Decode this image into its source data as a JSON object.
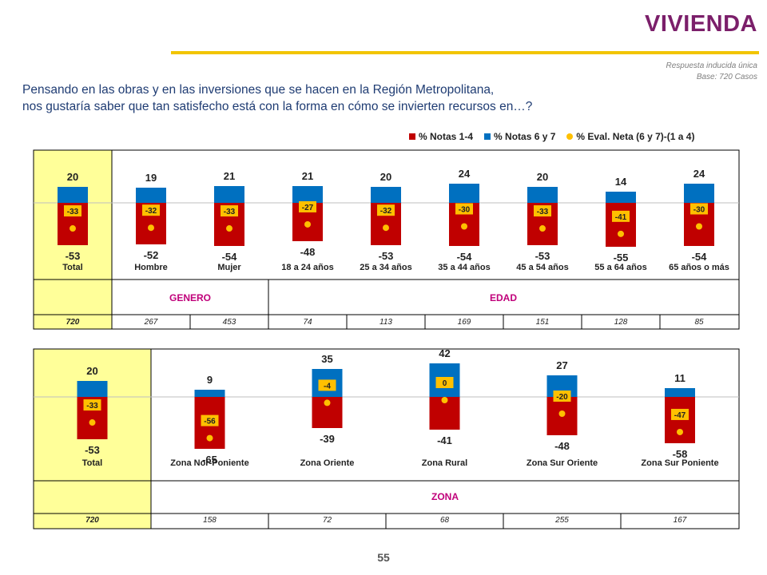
{
  "title": "VIVIENDA",
  "note_lines": [
    "Respuesta inducida única",
    "Base: 720 Casos"
  ],
  "question_lines": [
    "Pensando en las obras y en las inversiones que se hacen en la Región Metropolitana,",
    "nos gustaría saber que tan satisfecho está con la forma en cómo se invierten recursos en…?"
  ],
  "legend": [
    {
      "label": "% Notas 1-4",
      "color": "#C00000",
      "shape": "square"
    },
    {
      "label": "% Notas 6 y 7",
      "color": "#0070C0",
      "shape": "square"
    },
    {
      "label": "% Eval. Neta (6 y 7)-(1 a 4)",
      "color": "#FFC000",
      "shape": "circle"
    }
  ],
  "colors": {
    "negative": "#C00000",
    "positive": "#0070C0",
    "net": "#FFC000",
    "highlight": "#FFFF99"
  },
  "chart_data": [
    {
      "type": "bar",
      "categories": [
        "Total",
        "Hombre",
        "Mujer",
        "18 a 24 años",
        "25 a 34 años",
        "35 a 44 años",
        "45 a 54 años",
        "55 a 64 años",
        "65 años o más"
      ],
      "series": [
        {
          "name": "% Notas 1-4",
          "values": [
            -53,
            -52,
            -54,
            -48,
            -53,
            -54,
            -53,
            -55,
            -54
          ]
        },
        {
          "name": "% Notas 6 y 7",
          "values": [
            20,
            19,
            21,
            21,
            20,
            24,
            20,
            14,
            24
          ]
        },
        {
          "name": "% Eval. Neta (6 y 7)-(1 a 4)",
          "values": [
            -33,
            -32,
            -33,
            -27,
            -32,
            -30,
            -33,
            -41,
            -30
          ]
        }
      ],
      "groups": [
        {
          "label": "GENERO",
          "categories": [
            "Hombre",
            "Mujer"
          ]
        },
        {
          "label": "EDAD",
          "categories": [
            "18 a 24 años",
            "25 a 34 años",
            "35 a 44 años",
            "45 a 54 años",
            "55 a 64 años",
            "65 años o más"
          ]
        }
      ],
      "bases": [
        "720",
        "267",
        "453",
        "74",
        "113",
        "169",
        "151",
        "128",
        "85"
      ]
    },
    {
      "type": "bar",
      "categories": [
        "Total",
        "Zona Nor-Poniente",
        "Zona Oriente",
        "Zona Rural",
        "Zona Sur Oriente",
        "Zona Sur Poniente"
      ],
      "series": [
        {
          "name": "% Notas 1-4",
          "values": [
            -53,
            -65,
            -39,
            -41,
            -48,
            -58
          ]
        },
        {
          "name": "% Notas 6 y 7",
          "values": [
            20,
            9,
            35,
            42,
            27,
            11
          ]
        },
        {
          "name": "% Eval. Neta (6 y 7)-(1 a 4)",
          "values": [
            -33,
            -56,
            -4,
            0,
            -20,
            -47
          ]
        }
      ],
      "groups": [
        {
          "label": "ZONA",
          "categories": [
            "Zona Nor-Poniente",
            "Zona Oriente",
            "Zona Rural",
            "Zona Sur Oriente",
            "Zona Sur Poniente"
          ]
        }
      ],
      "bases": [
        "720",
        "158",
        "72",
        "68",
        "255",
        "167"
      ]
    }
  ],
  "page_number": "55"
}
